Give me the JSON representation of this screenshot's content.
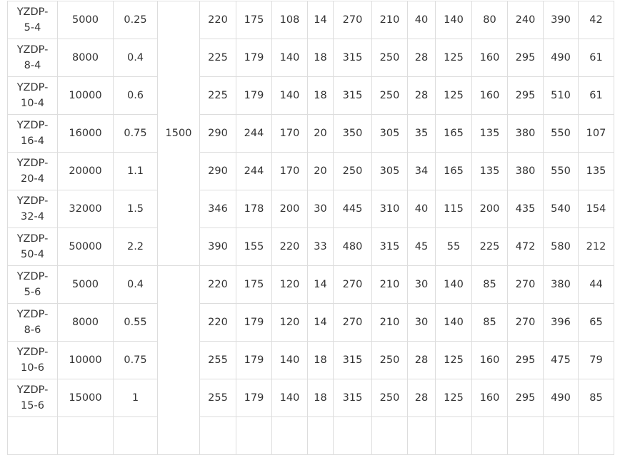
{
  "speed_group_value": "1500",
  "rows": [
    {
      "model": [
        "YZDP-",
        "5-4"
      ],
      "force": "5000",
      "power": "0.25",
      "dims": [
        "220",
        "175",
        "108",
        "14",
        "270",
        "210",
        "40",
        "140",
        "80",
        "240",
        "390",
        "42"
      ]
    },
    {
      "model": [
        "YZDP-",
        "8-4"
      ],
      "force": "8000",
      "power": "0.4",
      "dims": [
        "225",
        "179",
        "140",
        "18",
        "315",
        "250",
        "28",
        "125",
        "160",
        "295",
        "490",
        "61"
      ]
    },
    {
      "model": [
        "YZDP-",
        "10-4"
      ],
      "force": "10000",
      "power": "0.6",
      "dims": [
        "225",
        "179",
        "140",
        "18",
        "315",
        "250",
        "28",
        "125",
        "160",
        "295",
        "510",
        "61"
      ]
    },
    {
      "model": [
        "YZDP-",
        "16-4"
      ],
      "force": "16000",
      "power": "0.75",
      "dims": [
        "290",
        "244",
        "170",
        "20",
        "350",
        "305",
        "35",
        "165",
        "135",
        "380",
        "550",
        "107"
      ]
    },
    {
      "model": [
        "YZDP-",
        "20-4"
      ],
      "force": "20000",
      "power": "1.1",
      "dims": [
        "290",
        "244",
        "170",
        "20",
        "250",
        "305",
        "34",
        "165",
        "135",
        "380",
        "550",
        "135"
      ]
    },
    {
      "model": [
        "YZDP-",
        "32-4"
      ],
      "force": "32000",
      "power": "1.5",
      "dims": [
        "346",
        "178",
        "200",
        "30",
        "445",
        "310",
        "40",
        "115",
        "200",
        "435",
        "540",
        "154"
      ]
    },
    {
      "model": [
        "YZDP-",
        "50-4"
      ],
      "force": "50000",
      "power": "2.2",
      "dims": [
        "390",
        "155",
        "220",
        "33",
        "480",
        "315",
        "45",
        "55",
        "225",
        "472",
        "580",
        "212"
      ]
    },
    {
      "model": [
        "YZDP-",
        "5-6"
      ],
      "force": "5000",
      "power": "0.4",
      "dims": [
        "220",
        "175",
        "120",
        "14",
        "270",
        "210",
        "30",
        "140",
        "85",
        "270",
        "380",
        "44"
      ]
    },
    {
      "model": [
        "YZDP-",
        "8-6"
      ],
      "force": "8000",
      "power": "0.55",
      "dims": [
        "220",
        "179",
        "120",
        "14",
        "270",
        "210",
        "30",
        "140",
        "85",
        "270",
        "396",
        "65"
      ]
    },
    {
      "model": [
        "YZDP-",
        "10-6"
      ],
      "force": "10000",
      "power": "0.75",
      "dims": [
        "255",
        "179",
        "140",
        "18",
        "315",
        "250",
        "28",
        "125",
        "160",
        "295",
        "475",
        "79"
      ]
    },
    {
      "model": [
        "YZDP-",
        "15-6"
      ],
      "force": "15000",
      "power": "1",
      "dims": [
        "255",
        "179",
        "140",
        "18",
        "315",
        "250",
        "28",
        "125",
        "160",
        "295",
        "490",
        "85"
      ]
    }
  ]
}
